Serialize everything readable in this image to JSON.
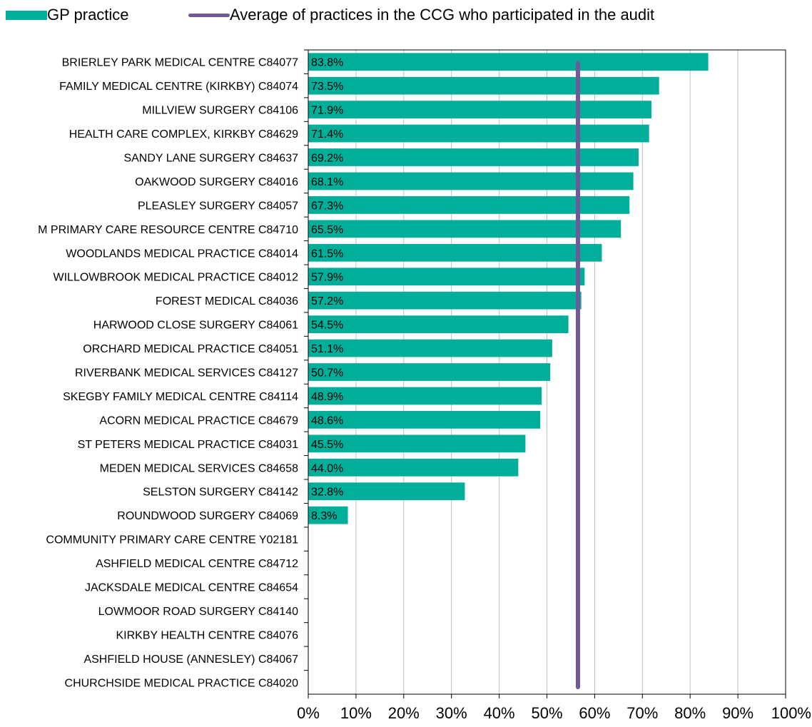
{
  "legend": {
    "bar_label": "GP practice",
    "line_label": "Average of practices in the CCG who participated in the audit"
  },
  "colors": {
    "bar": "#00ae99",
    "average_line": "#6f5a97",
    "grid": "#c0c0c0",
    "axis": "#000000"
  },
  "chart_data": {
    "type": "bar",
    "orientation": "horizontal",
    "categories": [
      "BRIERLEY PARK MEDICAL CENTRE C84077",
      "FAMILY MEDICAL CENTRE (KIRKBY) C84074",
      "MILLVIEW SURGERY C84106",
      "HEALTH CARE COMPLEX, KIRKBY C84629",
      "SANDY LANE SURGERY C84637",
      "OAKWOOD SURGERY C84016",
      "PLEASLEY SURGERY C84057",
      "M PRIMARY CARE RESOURCE CENTRE C84710",
      "WOODLANDS MEDICAL PRACTICE C84014",
      "WILLOWBROOK MEDICAL PRACTICE C84012",
      "FOREST MEDICAL C84036",
      "HARWOOD CLOSE SURGERY C84061",
      "ORCHARD MEDICAL PRACTICE C84051",
      "RIVERBANK MEDICAL SERVICES C84127",
      "SKEGBY FAMILY MEDICAL CENTRE C84114",
      "ACORN MEDICAL PRACTICE C84679",
      "ST PETERS MEDICAL PRACTICE C84031",
      "MEDEN MEDICAL SERVICES C84658",
      "SELSTON SURGERY C84142",
      "ROUNDWOOD SURGERY C84069",
      "COMMUNITY PRIMARY CARE CENTRE Y02181",
      "ASHFIELD MEDICAL CENTRE C84712",
      "JACKSDALE MEDICAL CENTRE C84654",
      "LOWMOOR ROAD SURGERY C84140",
      "KIRKBY HEALTH CENTRE C84076",
      "ASHFIELD HOUSE (ANNESLEY) C84067",
      "CHURCHSIDE MEDICAL PRACTICE C84020"
    ],
    "series": [
      {
        "name": "GP practice",
        "values": [
          83.8,
          73.5,
          71.9,
          71.4,
          69.2,
          68.1,
          67.3,
          65.5,
          61.5,
          57.9,
          57.2,
          54.5,
          51.1,
          50.7,
          48.9,
          48.6,
          45.5,
          44.0,
          32.8,
          8.3,
          null,
          null,
          null,
          null,
          null,
          null,
          null
        ],
        "labels": [
          "83.8%",
          "73.5%",
          "71.9%",
          "71.4%",
          "69.2%",
          "68.1%",
          "67.3%",
          "65.5%",
          "61.5%",
          "57.9%",
          "57.2%",
          "54.5%",
          "51.1%",
          "50.7%",
          "48.9%",
          "48.6%",
          "45.5%",
          "44.0%",
          "32.8%",
          "8.3%",
          "",
          "",
          "",
          "",
          "",
          "",
          ""
        ]
      }
    ],
    "average_line": {
      "name": "Average of practices in the CCG who participated in the audit",
      "value": 56.5
    },
    "xlim": [
      0,
      100
    ],
    "xticks": [
      0,
      10,
      20,
      30,
      40,
      50,
      60,
      70,
      80,
      90,
      100
    ],
    "xtick_labels": [
      "0%",
      "10%",
      "20%",
      "30%",
      "40%",
      "50%",
      "60%",
      "70%",
      "80%",
      "90%",
      "100%"
    ],
    "grid": "vertical",
    "legend_position": "top-left"
  }
}
